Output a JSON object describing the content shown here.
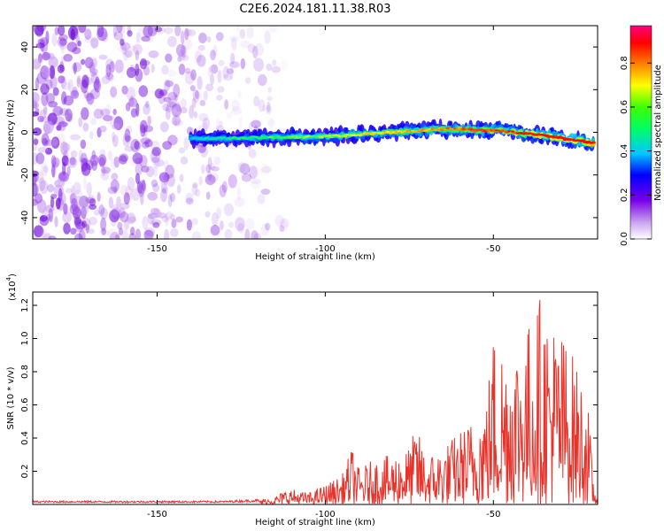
{
  "figure_title": "C2E6.2024.181.11.38.R03",
  "colorbar": {
    "label": "Normalized spectral amplitude",
    "ticks": [
      "0.0",
      "0.2",
      "0.4",
      "0.6",
      "0.8"
    ],
    "tick_values": [
      0.0,
      0.2,
      0.4,
      0.6,
      0.8
    ],
    "range": [
      0,
      0.97
    ]
  },
  "colors": {
    "snr_line": "#e8322a",
    "spectrogram_cloud": "#7a1fd6"
  },
  "chart_data": [
    {
      "type": "heatmap",
      "title": "",
      "xlabel": "Height of straight line (km)",
      "ylabel": "Frequency (Hz)",
      "xlim": [
        -187,
        -19
      ],
      "ylim": [
        -50,
        50
      ],
      "x_ticks": [
        "-150",
        "-100",
        "-50"
      ],
      "x_tick_values": [
        -150,
        -100,
        -50
      ],
      "y_ticks": [
        "40",
        "20",
        "0",
        "-20",
        "-40"
      ],
      "y_tick_values": [
        40,
        20,
        0,
        -20,
        -40
      ],
      "band_centerline": {
        "x": [
          -140,
          -120,
          -100,
          -80,
          -65,
          -50,
          -35,
          -20
        ],
        "y": [
          -3,
          -2.5,
          -2,
          0,
          1.5,
          1,
          -1.5,
          -5
        ]
      },
      "band_peak_amplitude": 0.97,
      "noise_region_x": [
        -187,
        -112
      ],
      "colorscale": "rainbow"
    },
    {
      "type": "line",
      "title": "",
      "xlabel": "Height of straight line (km)",
      "ylabel": "SNR (10 * v/v)",
      "y_multiplier_label": "(x10",
      "y_multiplier_exp": "4",
      "xlim": [
        -187,
        -19
      ],
      "ylim": [
        0,
        1.28
      ],
      "x_ticks": [
        "-150",
        "-100",
        "-50"
      ],
      "x_tick_values": [
        -150,
        -100,
        -50
      ],
      "y_ticks": [
        "0.2",
        "0.4",
        "0.6",
        "0.8",
        "1.0",
        "1.2"
      ],
      "y_tick_values": [
        0.2,
        0.4,
        0.6,
        0.8,
        1.0,
        1.2
      ],
      "series": [
        {
          "x": [
            -187,
            -170,
            -150,
            -130,
            -120,
            -115,
            -111,
            -105,
            -100,
            -95,
            -92,
            -90,
            -85,
            -80,
            -75,
            -73,
            -70,
            -65,
            -60,
            -55,
            -52,
            -50,
            -45,
            -40,
            -36,
            -32,
            -28,
            -24,
            -22,
            -20,
            -19
          ],
          "values": [
            0.02,
            0.02,
            0.02,
            0.02,
            0.03,
            0.05,
            0.1,
            0.07,
            0.12,
            0.18,
            0.35,
            0.22,
            0.28,
            0.3,
            0.35,
            0.48,
            0.3,
            0.35,
            0.45,
            0.55,
            0.68,
            1.05,
            0.98,
            1.08,
            1.28,
            1.12,
            1.0,
            0.78,
            0.65,
            0.08,
            0.1
          ]
        }
      ]
    }
  ]
}
